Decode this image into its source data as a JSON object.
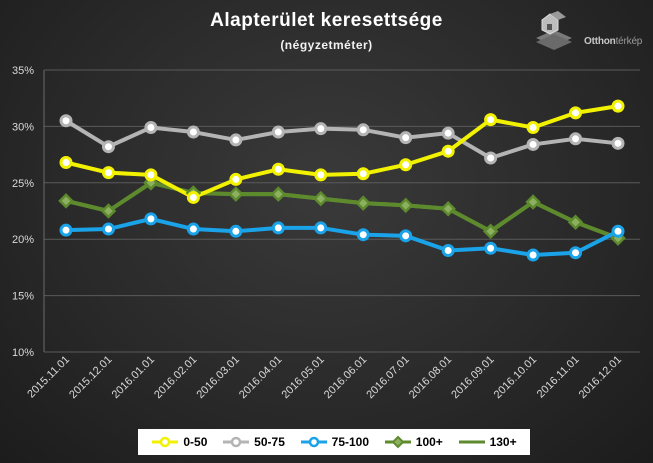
{
  "chart_data": {
    "type": "line",
    "title": "Alapterület  keresettsége",
    "subtitle": "(négyzetméter)",
    "categories": [
      "2015.11.01",
      "2015.12.01",
      "2016.01.01",
      "2016.02.01",
      "2016.03.01",
      "2016.04.01",
      "2016.05.01",
      "2016.06.01",
      "2016.07.01",
      "2016.08.01",
      "2016.09.01",
      "2016.10.01",
      "2016.11.01",
      "2016.12.01"
    ],
    "y_ticks": [
      "35%",
      "30%",
      "25%",
      "20%",
      "15%",
      "10%"
    ],
    "ylim": [
      10,
      35
    ],
    "y_unit": "%",
    "legend_position": "bottom",
    "series": [
      {
        "name": "0-50",
        "color": "#f2f200",
        "marker": "circle",
        "values": [
          26.8,
          25.9,
          25.7,
          23.7,
          25.3,
          26.2,
          25.7,
          25.8,
          26.6,
          27.8,
          30.6,
          29.9,
          31.2,
          31.8
        ]
      },
      {
        "name": "50-75",
        "color": "#b4b4b4",
        "marker": "circle",
        "values": [
          30.5,
          28.2,
          29.9,
          29.5,
          28.8,
          29.5,
          29.8,
          29.7,
          29.0,
          29.4,
          27.2,
          28.4,
          28.9,
          28.5
        ]
      },
      {
        "name": "75-100",
        "color": "#1aa3e8",
        "marker": "circle",
        "values": [
          20.8,
          20.9,
          21.8,
          20.9,
          20.7,
          21.0,
          21.0,
          20.4,
          20.3,
          19.0,
          19.2,
          18.6,
          18.8,
          20.7
        ]
      },
      {
        "name": "100+",
        "color": "#5e8a2e",
        "marker": "diamond",
        "values": [
          23.4,
          22.5,
          25.0,
          24.1,
          24.0,
          24.0,
          23.6,
          23.2,
          23.0,
          22.7,
          20.7,
          23.3,
          21.5,
          20.1
        ]
      },
      {
        "name": "130+",
        "color": "#5e8a2e",
        "marker": "none",
        "values": [
          23.4,
          22.5,
          25.0,
          24.1,
          24.0,
          24.0,
          23.6,
          23.2,
          23.0,
          22.7,
          20.7,
          23.3,
          21.5,
          20.1
        ]
      }
    ]
  },
  "logo": {
    "name_bold": "Otthon",
    "name_light": "térkép"
  }
}
